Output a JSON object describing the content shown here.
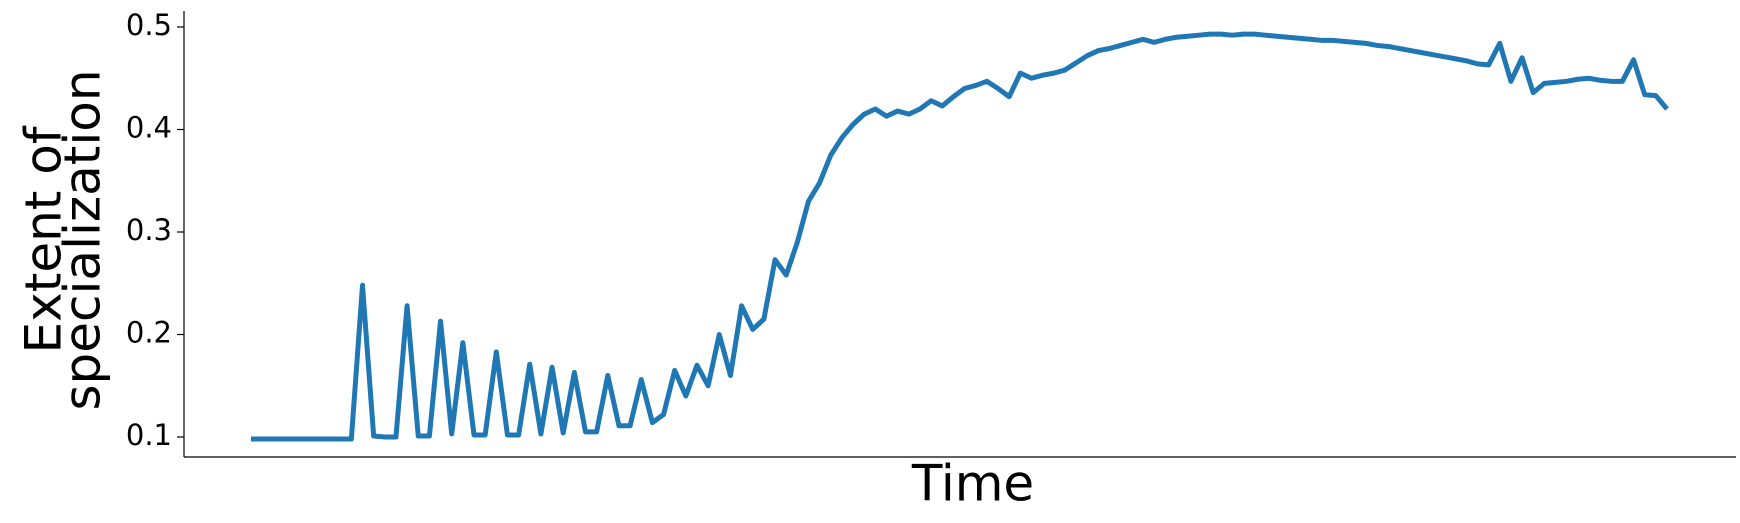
{
  "chart_data": {
    "type": "line",
    "x_label": "Time",
    "y_label": [
      "Extent of",
      "specialization"
    ],
    "color": "#1f77b4",
    "ylim": [
      0.0805,
      0.5156
    ],
    "yticks": [
      0.1,
      0.2,
      0.3,
      0.4,
      0.5
    ],
    "values": [
      0.098,
      0.098,
      0.098,
      0.098,
      0.098,
      0.098,
      0.098,
      0.098,
      0.098,
      0.098,
      0.248,
      0.101,
      0.1,
      0.1,
      0.228,
      0.101,
      0.101,
      0.213,
      0.103,
      0.192,
      0.102,
      0.102,
      0.183,
      0.102,
      0.102,
      0.171,
      0.103,
      0.168,
      0.104,
      0.163,
      0.105,
      0.105,
      0.16,
      0.111,
      0.111,
      0.156,
      0.114,
      0.122,
      0.165,
      0.14,
      0.17,
      0.15,
      0.2,
      0.16,
      0.228,
      0.205,
      0.215,
      0.273,
      0.258,
      0.29,
      0.33,
      0.348,
      0.375,
      0.392,
      0.405,
      0.415,
      0.42,
      0.413,
      0.418,
      0.415,
      0.42,
      0.428,
      0.423,
      0.432,
      0.44,
      0.443,
      0.447,
      0.44,
      0.432,
      0.455,
      0.45,
      0.453,
      0.455,
      0.458,
      0.465,
      0.472,
      0.477,
      0.479,
      0.482,
      0.485,
      0.488,
      0.485,
      0.488,
      0.49,
      0.491,
      0.492,
      0.493,
      0.493,
      0.492,
      0.493,
      0.493,
      0.492,
      0.491,
      0.49,
      0.489,
      0.488,
      0.487,
      0.487,
      0.486,
      0.485,
      0.484,
      0.482,
      0.481,
      0.479,
      0.477,
      0.475,
      0.473,
      0.471,
      0.469,
      0.467,
      0.464,
      0.463,
      0.484,
      0.447,
      0.47,
      0.436,
      0.445,
      0.446,
      0.447,
      0.449,
      0.45,
      0.448,
      0.447,
      0.447,
      0.468,
      0.434,
      0.433,
      0.42
    ]
  }
}
